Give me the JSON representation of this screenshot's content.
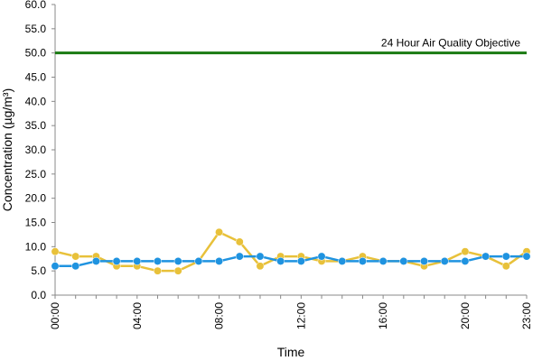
{
  "chart_data": {
    "type": "line",
    "xlabel": "Time",
    "ylabel": "Concentration (µg/m³)",
    "ylim": [
      0,
      60
    ],
    "y_ticks": [
      "0.0",
      "5.0",
      "10.0",
      "15.0",
      "20.0",
      "25.0",
      "30.0",
      "35.0",
      "40.0",
      "45.0",
      "50.0",
      "55.0",
      "60.0"
    ],
    "x_tick_labels": [
      "00:00",
      "04:00",
      "08:00",
      "12:00",
      "16:00",
      "20:00",
      "23:00"
    ],
    "x_tick_hours": [
      0,
      4,
      8,
      12,
      16,
      20,
      23
    ],
    "x_hours": [
      0,
      1,
      2,
      3,
      4,
      5,
      6,
      7,
      8,
      9,
      10,
      11,
      12,
      13,
      14,
      15,
      16,
      17,
      18,
      19,
      20,
      21,
      22,
      23
    ],
    "grid": false,
    "series": [
      {
        "color": "#e8c13a",
        "values": [
          9,
          8,
          8,
          6,
          6,
          5,
          5,
          7,
          13,
          11,
          6,
          8,
          8,
          7,
          7,
          8,
          7,
          7,
          6,
          7,
          9,
          8,
          6,
          9
        ]
      },
      {
        "color": "#1f93e0",
        "values": [
          6,
          6,
          7,
          7,
          7,
          7,
          7,
          7,
          7,
          8,
          8,
          7,
          7,
          8,
          7,
          7,
          7,
          7,
          7,
          7,
          7,
          8,
          8,
          8
        ]
      }
    ],
    "reference_line": {
      "value": 50,
      "label": "24 Hour Air Quality Objective",
      "color": "#1a7a12"
    }
  }
}
